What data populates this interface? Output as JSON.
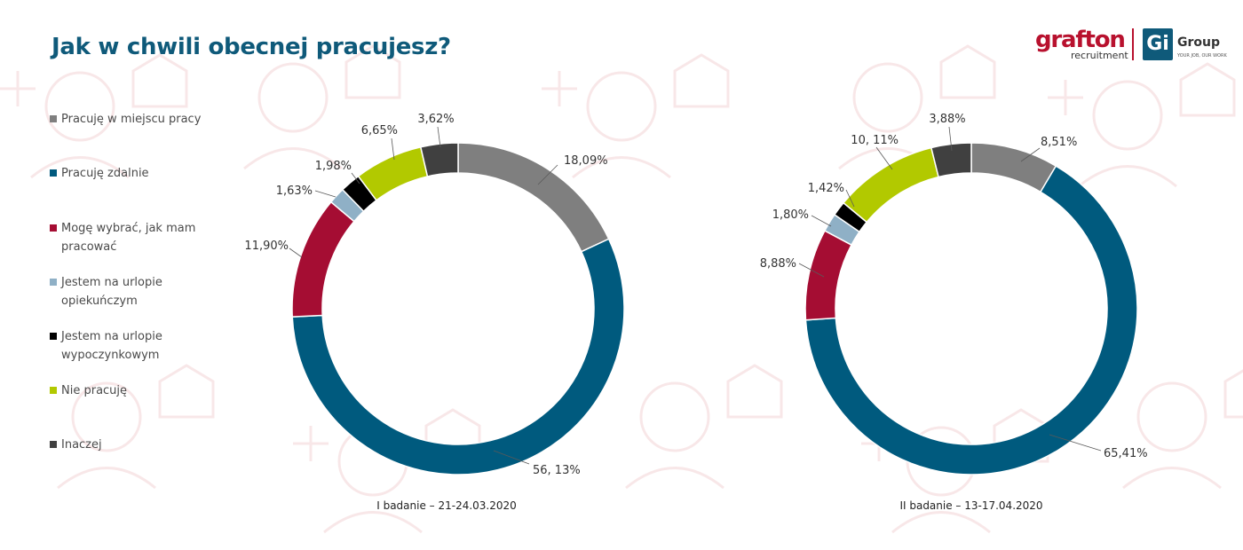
{
  "title": "Jak w chwili obecnej pracujesz?",
  "logo": {
    "grafton": "grafton",
    "recruitment": "recruitment",
    "gi": "Gi",
    "group": "Group",
    "tagline": "YOUR JOB, OUR WORK"
  },
  "colors": {
    "title": "#0f5a7a",
    "background_pattern": "#f3d4d6"
  },
  "legend": [
    {
      "label": "Pracuję w miejscu pracy",
      "color": "#7f7f7f"
    },
    {
      "label": "Pracuję zdalnie",
      "color": "#005a7e"
    },
    {
      "label": "Mogę wybrać, jak mam pracować",
      "color": "#a50d33"
    },
    {
      "label": "Jestem na urlopie opiekuńczym",
      "color": "#8fb0c6"
    },
    {
      "label": "Jestem na urlopie wypoczynkowym",
      "color": "#000000"
    },
    {
      "label": "Nie pracuję",
      "color": "#b2c900"
    },
    {
      "label": "Inaczej",
      "color": "#404040"
    }
  ],
  "chart_data": [
    {
      "type": "pie",
      "donut": true,
      "caption": "I badanie – 21-24.03.2020",
      "categories": [
        "Pracuję w miejscu pracy",
        "Pracuję zdalnie",
        "Mogę wybrać, jak mam pracować",
        "Jestem na urlopie opiekuńczym",
        "Jestem na urlopie wypoczynkowym",
        "Nie pracuję",
        "Inaczej"
      ],
      "values": [
        18.09,
        56.13,
        11.9,
        1.63,
        1.98,
        6.65,
        3.62
      ],
      "labels": [
        "18,09%",
        "56, 13%",
        "11,90%",
        "1,63%",
        "1,98%",
        "6,65%",
        "3,62%"
      ],
      "start": "12 o'clock, clockwise"
    },
    {
      "type": "pie",
      "donut": true,
      "caption": "II badanie – 13-17.04.2020",
      "categories": [
        "Pracuję w miejscu pracy",
        "Pracuję zdalnie",
        "Mogę wybrać, jak mam pracować",
        "Jestem na urlopie opiekuńczym",
        "Jestem na urlopie wypoczynkowym",
        "Nie pracuję",
        "Inaczej"
      ],
      "values": [
        8.51,
        65.41,
        8.88,
        1.8,
        1.42,
        10.11,
        3.88
      ],
      "labels": [
        "8,51%",
        "65,41%",
        "8,88%",
        "1,80%",
        "1,42%",
        "10, 11%",
        "3,88%"
      ],
      "start": "12 o'clock, clockwise"
    }
  ]
}
